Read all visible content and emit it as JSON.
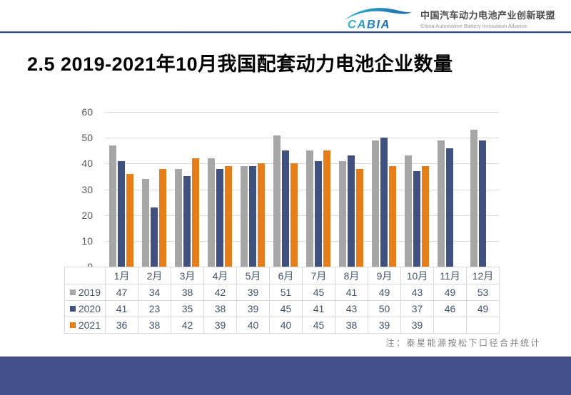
{
  "header": {
    "logo_text": "CABIA",
    "org_name_cn": "中国汽车动力电池产业创新联盟",
    "org_name_en": "China Automotive Battery Innovation Alliance"
  },
  "title": "2.5 2019-2021年10月我国配套动力电池企业数量",
  "chart_data": {
    "type": "bar",
    "title": "2019-2021年10月我国配套动力电池企业数量",
    "categories": [
      "1月",
      "2月",
      "3月",
      "4月",
      "5月",
      "6月",
      "7月",
      "8月",
      "9月",
      "10月",
      "11月",
      "12月"
    ],
    "series": [
      {
        "name": "2019",
        "color": "#a6a6a6",
        "values": [
          47,
          34,
          38,
          42,
          39,
          51,
          45,
          41,
          49,
          43,
          49,
          53
        ]
      },
      {
        "name": "2020",
        "color": "#41517f",
        "values": [
          41,
          23,
          35,
          38,
          39,
          45,
          41,
          43,
          50,
          37,
          46,
          49
        ]
      },
      {
        "name": "2021",
        "color": "#e57d1a",
        "values": [
          36,
          38,
          42,
          39,
          40,
          40,
          45,
          38,
          39,
          39,
          null,
          null
        ]
      }
    ],
    "xlabel": "",
    "ylabel": "",
    "ylim": [
      0,
      60
    ],
    "yticks": [
      0,
      10,
      20,
      30,
      40,
      50,
      60
    ],
    "grid": true,
    "legend_position": "table-left",
    "data_table_shown": true
  },
  "footnote": "注：泰星能源按松下口径合并统计",
  "colors": {
    "divider": "#2f4276",
    "footer_band": "#43508a",
    "table_text": "#44546a",
    "axis_text": "#595959",
    "gridline": "#d9d9d9"
  }
}
